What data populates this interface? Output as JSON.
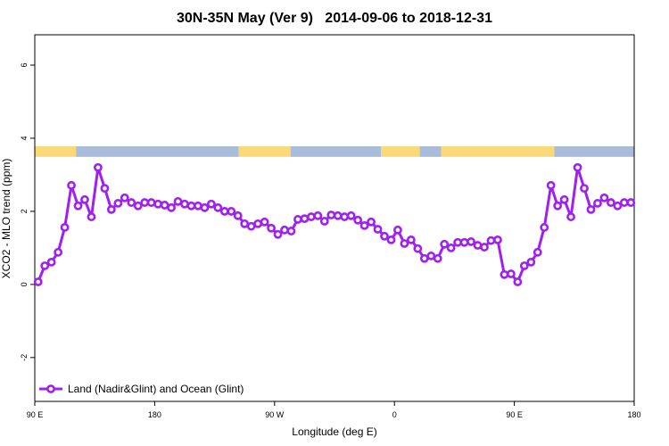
{
  "chart_data": {
    "type": "line",
    "title": "30N-35N May (Ver 9)   2014-09-06 to 2018-12-31",
    "x_label": "Longitude (deg E)",
    "y_label": "XCO2 - MLO trend (ppm)",
    "xlim": [
      90,
      540
    ],
    "ylim": [
      -3.2,
      6.83
    ],
    "xticks": [
      {
        "value": 90,
        "label": "90 E"
      },
      180,
      {
        "value": 270,
        "label": "90 W"
      },
      {
        "value": 360,
        "label": "0"
      },
      {
        "value": 450,
        "label": "90 E"
      },
      180
    ],
    "yticks": [
      -2,
      0,
      2,
      4,
      6
    ],
    "legend": "bottom-left",
    "bands_ylim": [
      3.49,
      3.78
    ],
    "bands": [
      {
        "x": [
          90,
          121
        ],
        "color": "#fad978"
      },
      {
        "x": [
          121,
          243
        ],
        "color": "#a9bcd9"
      },
      {
        "x": [
          243,
          282
        ],
        "color": "#fad978"
      },
      {
        "x": [
          282,
          350
        ],
        "color": "#a9bcd9"
      },
      {
        "x": [
          350,
          379
        ],
        "color": "#fad978"
      },
      {
        "x": [
          379,
          395
        ],
        "color": "#a9bcd9"
      },
      {
        "x": [
          395,
          480
        ],
        "color": "#fad978"
      },
      {
        "x": [
          480,
          540
        ],
        "color": "#a9bcd9"
      }
    ],
    "x": [
      92.5,
      97.5,
      102.5,
      107.5,
      112.5,
      117.5,
      122.5,
      127.5,
      132.5,
      137.5,
      142.5,
      147.5,
      152.5,
      157.5,
      162.5,
      167.5,
      172.5,
      177.5,
      182.5,
      187.5,
      192.5,
      197.5,
      202.5,
      207.5,
      212.5,
      217.5,
      222.5,
      227.5,
      232.5,
      237.5,
      242.5,
      247.5,
      252.5,
      257.5,
      262.5,
      267.5,
      272.5,
      277.5,
      282.5,
      287.5,
      292.5,
      297.5,
      302.5,
      307.5,
      312.5,
      317.5,
      322.5,
      327.5,
      332.5,
      337.5,
      342.5,
      347.5,
      352.5,
      357.5,
      362.5,
      367.5,
      372.5,
      377.5,
      382.5,
      387.5,
      392.5,
      397.5,
      402.5,
      407.5,
      412.5,
      417.5,
      422.5,
      427.5,
      432.5,
      437.5,
      442.5,
      447.5,
      452.5,
      457.5,
      462.5,
      467.5,
      472.5,
      477.5,
      482.5,
      487.5,
      492.5,
      497.5,
      502.5,
      507.5,
      512.5,
      517.5,
      522.5,
      527.5,
      532.5,
      537.5
    ],
    "series": [
      {
        "name": "Land (Nadir&Glint) and Ocean (Glint)",
        "color": "#a020f0",
        "values": [
          0.07,
          0.51,
          0.61,
          0.88,
          1.56,
          2.71,
          2.15,
          2.32,
          1.85,
          3.2,
          2.63,
          2.05,
          2.22,
          2.37,
          2.24,
          2.15,
          2.24,
          2.24,
          2.2,
          2.17,
          2.1,
          2.27,
          2.2,
          2.15,
          2.15,
          2.1,
          2.2,
          2.1,
          2.0,
          2.0,
          1.88,
          1.66,
          1.59,
          1.66,
          1.71,
          1.54,
          1.37,
          1.49,
          1.46,
          1.78,
          1.8,
          1.85,
          1.88,
          1.73,
          1.9,
          1.88,
          1.85,
          1.88,
          1.76,
          1.61,
          1.71,
          1.51,
          1.32,
          1.22,
          1.49,
          1.12,
          1.22,
          0.98,
          0.71,
          0.78,
          0.71,
          1.1,
          1.0,
          1.15,
          1.15,
          1.17,
          1.07,
          1.02,
          1.2,
          1.22,
          0.27,
          0.29,
          0.07,
          0.51,
          0.61,
          0.88,
          1.56,
          2.71,
          2.15,
          2.32,
          1.85,
          3.2,
          2.63,
          2.05,
          2.22,
          2.37,
          2.24,
          2.15,
          2.24,
          2.24
        ]
      }
    ]
  }
}
